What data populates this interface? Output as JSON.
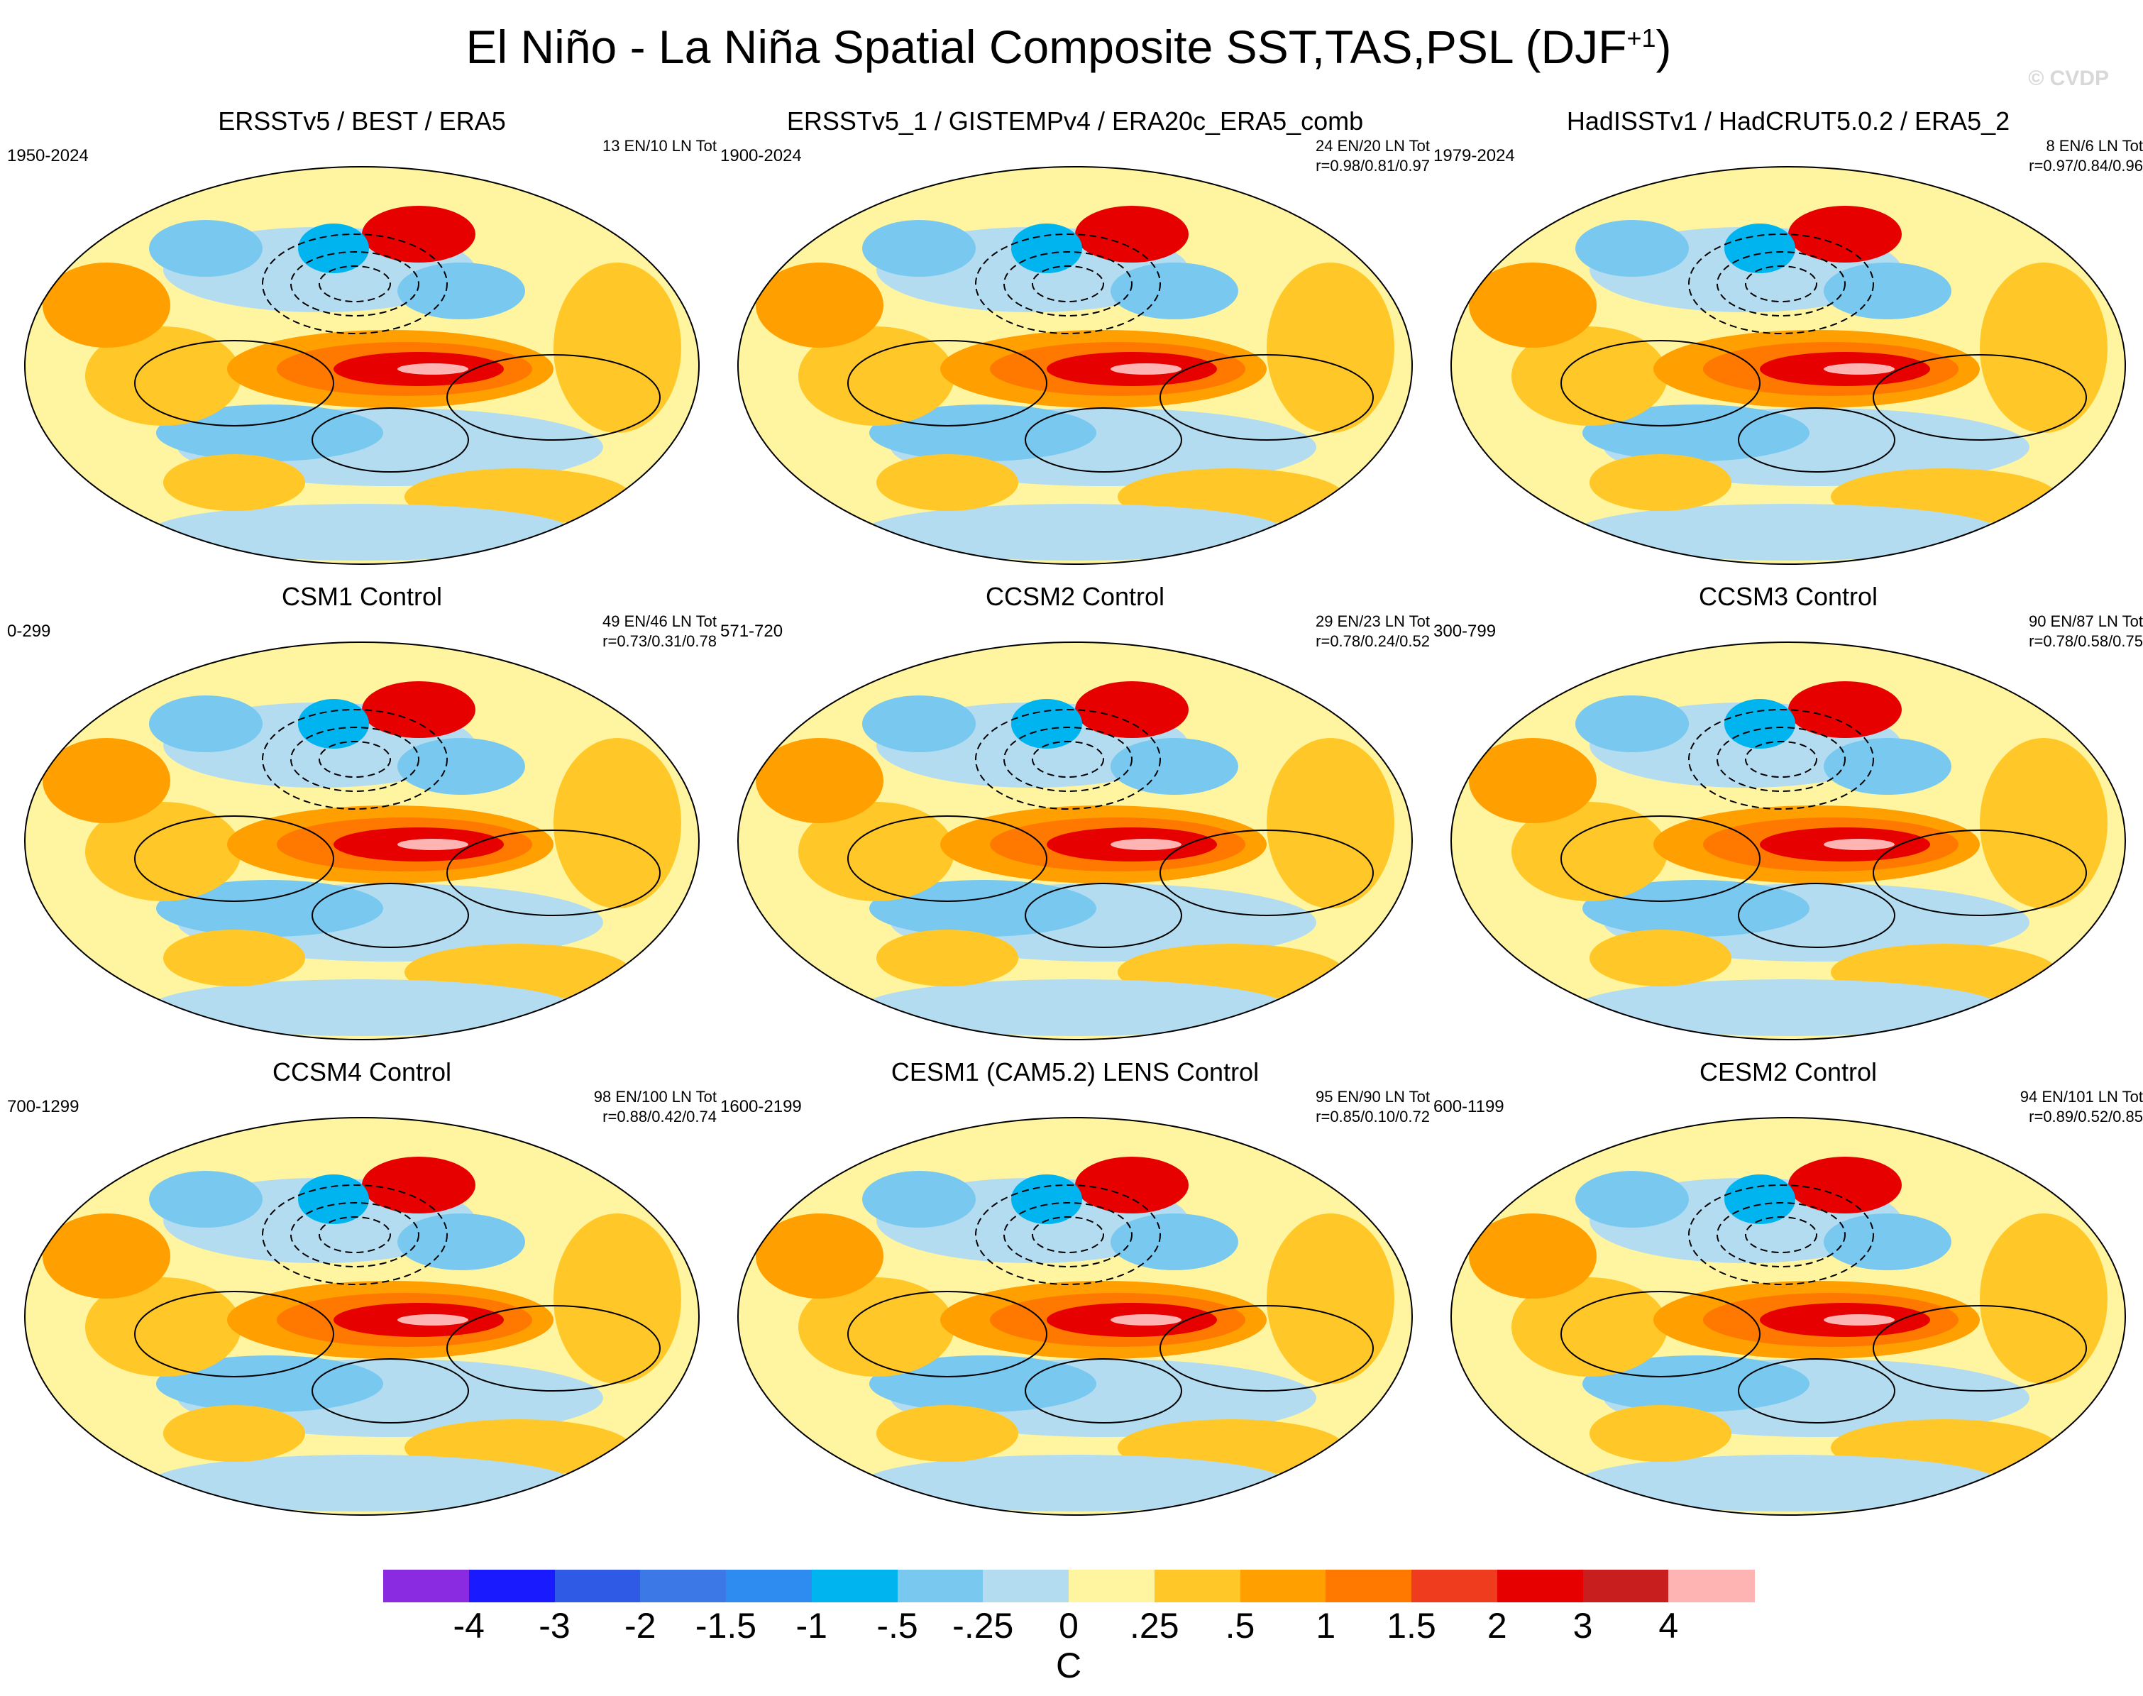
{
  "title": {
    "main": "El Niño - La Niña Spatial Composite SST,TAS,PSL (DJF",
    "sup": "+1",
    "close": ")"
  },
  "watermark": "© CVDP",
  "panels": [
    {
      "title": "ERSSTv5 / BEST / ERA5",
      "years": "1950-2024",
      "counts": "13 EN/10 LN Tot",
      "corr": ""
    },
    {
      "title": "ERSSTv5_1 / GISTEMPv4 / ERA20c_ERA5_comb",
      "years": "1900-2024",
      "counts": "24 EN/20 LN Tot",
      "corr": "r=0.98/0.81/0.97"
    },
    {
      "title": "HadISSTv1 / HadCRUT5.0.2 / ERA5_2",
      "years": "1979-2024",
      "counts": "8 EN/6 LN Tot",
      "corr": "r=0.97/0.84/0.96"
    },
    {
      "title": "CSM1 Control",
      "years": "0-299",
      "counts": "49 EN/46 LN Tot",
      "corr": "r=0.73/0.31/0.78"
    },
    {
      "title": "CCSM2 Control",
      "years": "571-720",
      "counts": "29 EN/23 LN Tot",
      "corr": "r=0.78/0.24/0.52"
    },
    {
      "title": "CCSM3 Control",
      "years": "300-799",
      "counts": "90 EN/87 LN Tot",
      "corr": "r=0.78/0.58/0.75"
    },
    {
      "title": "CCSM4 Control",
      "years": "700-1299",
      "counts": "98 EN/100 LN Tot",
      "corr": "r=0.88/0.42/0.74"
    },
    {
      "title": "CESM1 (CAM5.2) LENS Control",
      "years": "1600-2199",
      "counts": "95 EN/90 LN Tot",
      "corr": "r=0.85/0.10/0.72"
    },
    {
      "title": "CESM2 Control",
      "years": "600-1199",
      "counts": "94 EN/101 LN Tot",
      "corr": "r=0.89/0.52/0.85"
    }
  ],
  "colorbar": {
    "colors": [
      "#8a2be2",
      "#1a1aff",
      "#2e5ae6",
      "#3c78e6",
      "#2e8cf0",
      "#00b4f0",
      "#78c8f0",
      "#b4dcf0",
      "#fff5a0",
      "#ffc828",
      "#ffa000",
      "#ff7800",
      "#f03c1e",
      "#e60000",
      "#c81e1e",
      "#ffb4b4"
    ],
    "labels": [
      "-4",
      "-3",
      "-2",
      "-1.5",
      "-1",
      "-.5",
      "-.25",
      "0",
      ".25",
      ".5",
      "1",
      "1.5",
      "2",
      "3",
      "4"
    ],
    "unit": "C"
  }
}
